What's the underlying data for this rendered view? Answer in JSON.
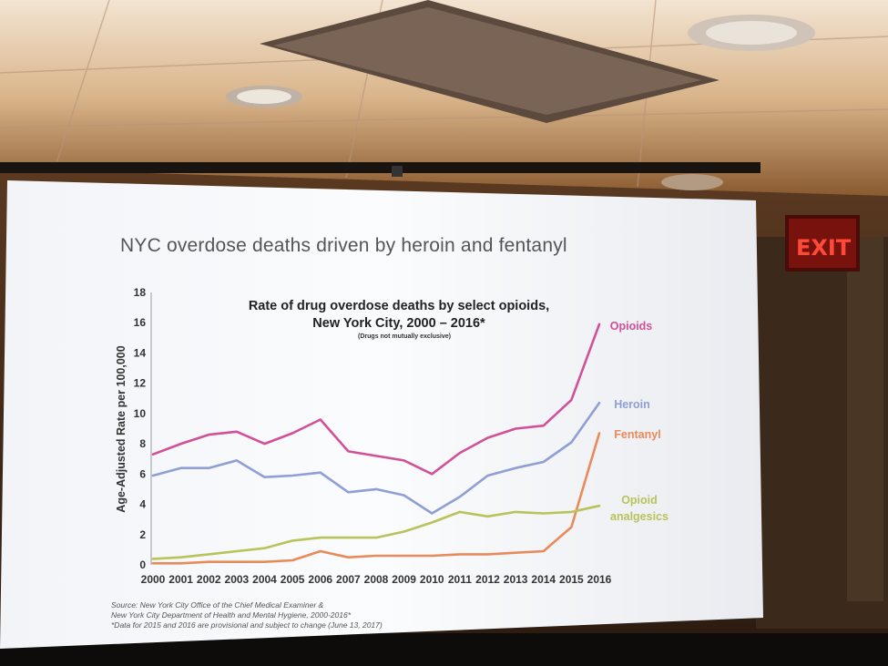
{
  "slide": {
    "title": "NYC overdose deaths driven by heroin and fentanyl",
    "source_lines": [
      "Source: New York City Office of the Chief Medical Examiner &",
      "New York City Department of Health and Mental Hygiene, 2000-2016*",
      "*Data for 2015 and 2016 are provisional and subject to change (June 13, 2017)"
    ]
  },
  "exit_sign": {
    "text": "EXIT"
  },
  "chart_data": {
    "type": "line",
    "title_lines": [
      "Rate of drug overdose deaths by select opioids,",
      "New York City, 2000 – 2016*"
    ],
    "note": "(Drugs not mutually exclusive)",
    "ylabel": "Age-Adjusted Rate per 100,000",
    "xlabel": "",
    "ylim": [
      0,
      18
    ],
    "yticks": [
      0,
      2,
      4,
      6,
      8,
      10,
      12,
      14,
      16,
      18
    ],
    "x": [
      "2000",
      "2001",
      "2002",
      "2003",
      "2004",
      "2005",
      "2006",
      "2007",
      "2008",
      "2009",
      "2010",
      "2011",
      "2012",
      "2013",
      "2014",
      "2015",
      "2016"
    ],
    "grid": false,
    "series": [
      {
        "name": "Opioids",
        "color": "#d2509a",
        "values": [
          7.3,
          8.0,
          8.6,
          8.8,
          8.0,
          8.7,
          9.6,
          7.5,
          7.2,
          6.9,
          6.0,
          7.4,
          8.4,
          9.0,
          9.2,
          10.9,
          15.9
        ]
      },
      {
        "name": "Heroin",
        "color": "#8f9fd6",
        "values": [
          5.9,
          6.4,
          6.4,
          6.9,
          5.8,
          5.9,
          6.1,
          4.8,
          5.0,
          4.6,
          3.4,
          4.5,
          5.9,
          6.4,
          6.8,
          8.1,
          10.7
        ]
      },
      {
        "name": "Fentanyl",
        "color": "#e98a5a",
        "values": [
          0.1,
          0.1,
          0.2,
          0.2,
          0.2,
          0.3,
          0.9,
          0.5,
          0.6,
          0.6,
          0.6,
          0.7,
          0.7,
          0.8,
          0.9,
          2.5,
          8.7
        ]
      },
      {
        "name": "Opioid analgesics",
        "label_lines": [
          "Opioid",
          "analgesics"
        ],
        "color": "#b8c35a",
        "values": [
          0.4,
          0.5,
          0.7,
          0.9,
          1.1,
          1.6,
          1.8,
          1.8,
          1.8,
          2.2,
          2.8,
          3.5,
          3.2,
          3.5,
          3.4,
          3.5,
          3.9
        ]
      }
    ]
  }
}
